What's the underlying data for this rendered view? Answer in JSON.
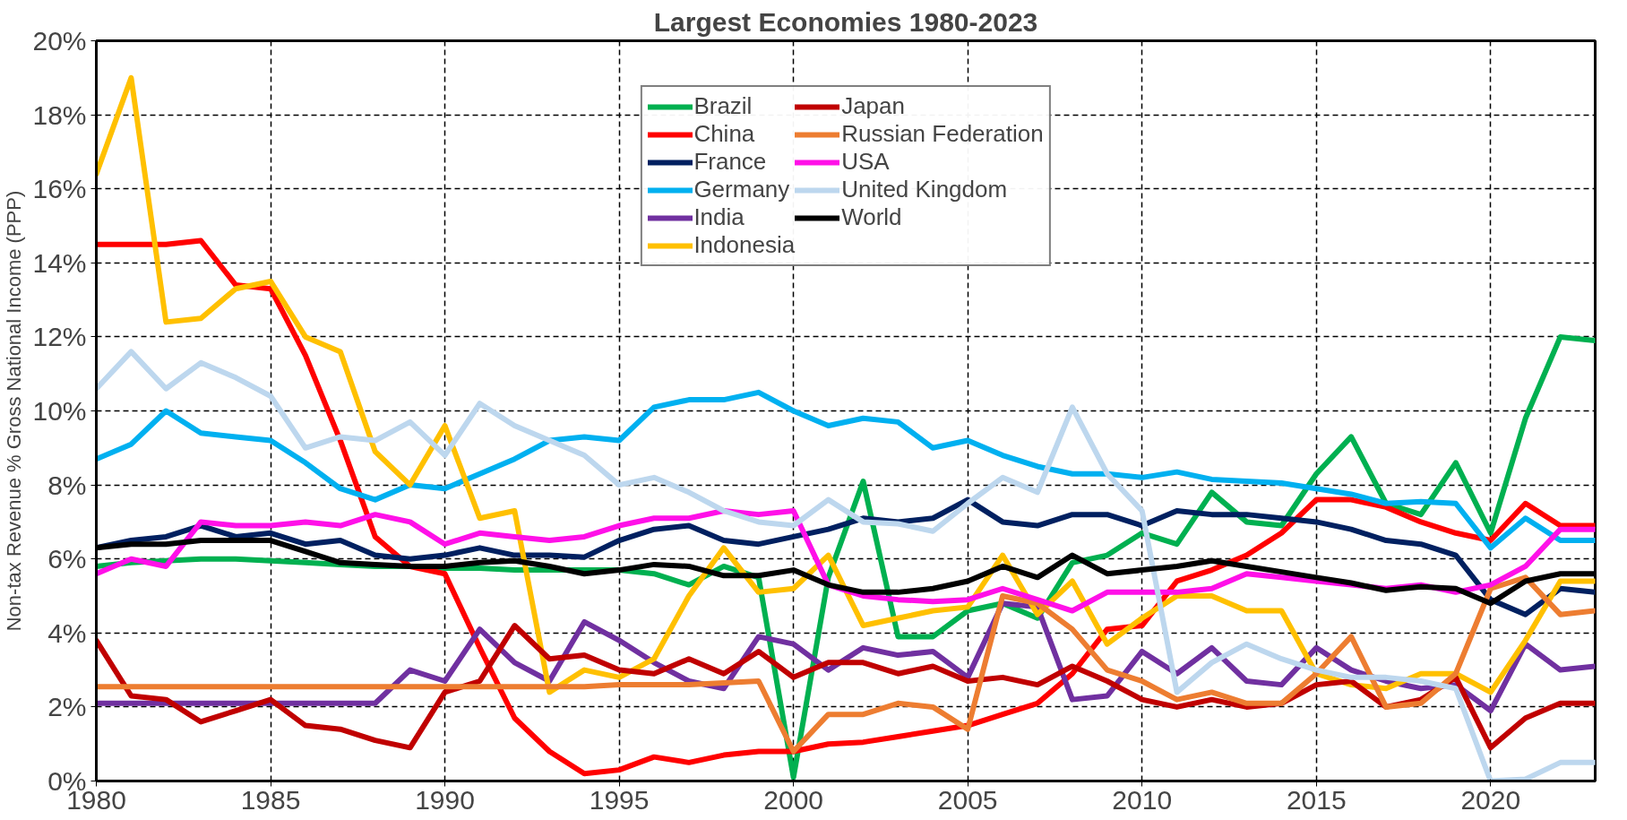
{
  "chart_data": {
    "type": "line",
    "title": "Largest Economies 1980-2023",
    "ylabel": "Non-tax Revenue % Gross National Income (PPP)",
    "x": [
      1980,
      1981,
      1982,
      1983,
      1984,
      1985,
      1986,
      1987,
      1988,
      1989,
      1990,
      1991,
      1992,
      1993,
      1994,
      1995,
      1996,
      1997,
      1998,
      1999,
      2000,
      2001,
      2002,
      2003,
      2004,
      2005,
      2006,
      2007,
      2008,
      2009,
      2010,
      2011,
      2012,
      2013,
      2014,
      2015,
      2016,
      2017,
      2018,
      2019,
      2020,
      2021,
      2022,
      2023
    ],
    "xlim": [
      1980,
      2023
    ],
    "xticks": [
      1980,
      1985,
      1990,
      1995,
      2000,
      2005,
      2010,
      2015,
      2020
    ],
    "ylim": [
      0,
      20
    ],
    "yticks": [
      {
        "value": 0,
        "label": "0%"
      },
      {
        "value": 2,
        "label": "2%"
      },
      {
        "value": 4,
        "label": "4%"
      },
      {
        "value": 6,
        "label": "6%"
      },
      {
        "value": 8,
        "label": "8%"
      },
      {
        "value": 10,
        "label": "10%"
      },
      {
        "value": 12,
        "label": "12%"
      },
      {
        "value": 14,
        "label": "14%"
      },
      {
        "value": 16,
        "label": "16%"
      },
      {
        "value": 18,
        "label": "18%"
      },
      {
        "value": 20,
        "label": "20%"
      }
    ],
    "grid": true,
    "legend": "top",
    "line_style": "solid",
    "marker": "none",
    "series": [
      {
        "name": "Brazil",
        "color": "#00b050",
        "values": [
          5.8,
          5.9,
          5.95,
          6.0,
          6.0,
          5.95,
          5.9,
          5.85,
          5.8,
          5.8,
          5.75,
          5.75,
          5.7,
          5.7,
          5.7,
          5.7,
          5.6,
          5.3,
          5.8,
          5.5,
          0.1,
          5.5,
          8.1,
          3.9,
          3.9,
          4.6,
          4.8,
          4.4,
          5.9,
          6.1,
          6.7,
          6.4,
          7.8,
          7.0,
          6.9,
          8.3,
          9.3,
          7.5,
          7.2,
          8.6,
          6.7,
          9.8,
          12.0,
          11.9
        ]
      },
      {
        "name": "China",
        "color": "#ff0000",
        "values": [
          14.5,
          14.5,
          14.5,
          14.6,
          13.4,
          13.3,
          11.5,
          9.2,
          6.6,
          5.8,
          5.6,
          3.6,
          1.7,
          0.8,
          0.2,
          0.3,
          0.65,
          0.5,
          0.7,
          0.8,
          0.8,
          1.0,
          1.05,
          1.2,
          1.35,
          1.5,
          1.8,
          2.1,
          2.9,
          4.1,
          4.2,
          5.4,
          5.7,
          6.1,
          6.7,
          7.6,
          7.6,
          7.4,
          7.0,
          6.7,
          6.5,
          7.5,
          6.9,
          6.9
        ]
      },
      {
        "name": "France",
        "color": "#002060",
        "values": [
          6.3,
          6.5,
          6.6,
          6.9,
          6.6,
          6.7,
          6.4,
          6.5,
          6.1,
          6.0,
          6.1,
          6.3,
          6.1,
          6.1,
          6.05,
          6.5,
          6.8,
          6.9,
          6.5,
          6.4,
          6.6,
          6.8,
          7.1,
          7.0,
          7.1,
          7.6,
          7.0,
          6.9,
          7.2,
          7.2,
          6.9,
          7.3,
          7.2,
          7.2,
          7.1,
          7.0,
          6.8,
          6.5,
          6.4,
          6.1,
          4.9,
          4.5,
          5.2,
          5.1
        ]
      },
      {
        "name": "Germany",
        "color": "#00b0f0",
        "values": [
          8.7,
          9.1,
          10.0,
          9.4,
          9.3,
          9.2,
          8.6,
          7.9,
          7.6,
          8.0,
          7.9,
          8.3,
          8.7,
          9.2,
          9.3,
          9.2,
          10.1,
          10.3,
          10.3,
          10.5,
          10.0,
          9.6,
          9.8,
          9.7,
          9.0,
          9.2,
          8.8,
          8.5,
          8.3,
          8.3,
          8.2,
          8.35,
          8.15,
          8.1,
          8.05,
          7.9,
          7.75,
          7.5,
          7.55,
          7.5,
          6.3,
          7.1,
          6.5,
          6.5
        ]
      },
      {
        "name": "India",
        "color": "#7030a0",
        "values": [
          2.1,
          2.1,
          2.1,
          2.1,
          2.1,
          2.1,
          2.1,
          2.1,
          2.1,
          3.0,
          2.7,
          4.1,
          3.2,
          2.7,
          4.3,
          3.8,
          3.2,
          2.7,
          2.5,
          3.9,
          3.7,
          3.0,
          3.6,
          3.4,
          3.5,
          2.8,
          4.8,
          4.7,
          2.2,
          2.3,
          3.5,
          2.9,
          3.6,
          2.7,
          2.6,
          3.6,
          3.0,
          2.7,
          2.5,
          2.6,
          1.9,
          3.7,
          3.0,
          3.1
        ]
      },
      {
        "name": "Indonesia",
        "color": "#ffc000",
        "values": [
          16.4,
          19.0,
          12.4,
          12.5,
          13.3,
          13.5,
          12.0,
          11.6,
          8.9,
          8.0,
          9.6,
          7.1,
          7.3,
          2.4,
          3.0,
          2.8,
          3.3,
          5.0,
          6.3,
          5.1,
          5.2,
          6.1,
          4.2,
          4.4,
          4.6,
          4.7,
          6.1,
          4.5,
          5.4,
          3.7,
          4.4,
          5.0,
          5.0,
          4.6,
          4.6,
          2.9,
          2.6,
          2.5,
          2.9,
          2.9,
          2.4,
          3.8,
          5.4,
          5.4
        ]
      },
      {
        "name": "Japan",
        "color": "#c00000",
        "values": [
          3.8,
          2.3,
          2.2,
          1.6,
          1.9,
          2.2,
          1.5,
          1.4,
          1.1,
          0.9,
          2.4,
          2.7,
          4.2,
          3.3,
          3.4,
          3.0,
          2.9,
          3.3,
          2.9,
          3.5,
          2.8,
          3.2,
          3.2,
          2.9,
          3.1,
          2.7,
          2.8,
          2.6,
          3.1,
          2.7,
          2.2,
          2.0,
          2.2,
          2.0,
          2.1,
          2.6,
          2.7,
          2.0,
          2.2,
          2.8,
          0.9,
          1.7,
          2.1,
          2.1
        ]
      },
      {
        "name": "Russian Federation",
        "color": "#ed7d31",
        "values": [
          2.55,
          2.55,
          2.55,
          2.55,
          2.55,
          2.55,
          2.55,
          2.55,
          2.55,
          2.55,
          2.55,
          2.55,
          2.55,
          2.55,
          2.55,
          2.6,
          2.6,
          2.6,
          2.65,
          2.7,
          0.8,
          1.8,
          1.8,
          2.1,
          2.0,
          1.4,
          5.0,
          4.8,
          4.1,
          3.0,
          2.7,
          2.2,
          2.4,
          2.1,
          2.1,
          2.9,
          3.9,
          2.0,
          2.1,
          2.9,
          5.2,
          5.5,
          4.5,
          4.6
        ]
      },
      {
        "name": "USA",
        "color": "#ff10e8",
        "values": [
          5.6,
          6.0,
          5.8,
          7.0,
          6.9,
          6.9,
          7.0,
          6.9,
          7.2,
          7.0,
          6.4,
          6.7,
          6.6,
          6.5,
          6.6,
          6.9,
          7.1,
          7.1,
          7.3,
          7.2,
          7.3,
          5.3,
          5.0,
          4.9,
          4.85,
          4.9,
          5.2,
          4.9,
          4.6,
          5.1,
          5.1,
          5.1,
          5.2,
          5.6,
          5.5,
          5.4,
          5.3,
          5.2,
          5.3,
          5.1,
          5.3,
          5.8,
          6.8,
          6.8
        ]
      },
      {
        "name": "United Kingdom",
        "color": "#bdd7ee",
        "values": [
          10.6,
          11.6,
          10.6,
          11.3,
          10.9,
          10.4,
          9.0,
          9.3,
          9.2,
          9.7,
          8.8,
          10.2,
          9.6,
          9.2,
          8.8,
          8.0,
          8.2,
          7.8,
          7.3,
          7.0,
          6.9,
          7.6,
          7.0,
          6.95,
          6.75,
          7.5,
          8.2,
          7.8,
          10.1,
          8.3,
          7.3,
          2.4,
          3.2,
          3.7,
          3.3,
          3.0,
          2.8,
          2.8,
          2.7,
          2.5,
          0.0,
          0.05,
          0.5,
          0.5
        ]
      },
      {
        "name": "World",
        "color": "#000000",
        "values": [
          6.3,
          6.4,
          6.4,
          6.5,
          6.5,
          6.5,
          6.2,
          5.9,
          5.85,
          5.8,
          5.8,
          5.9,
          5.95,
          5.8,
          5.6,
          5.7,
          5.85,
          5.8,
          5.55,
          5.55,
          5.7,
          5.3,
          5.1,
          5.1,
          5.2,
          5.4,
          5.8,
          5.5,
          6.1,
          5.6,
          5.7,
          5.8,
          5.95,
          5.8,
          5.65,
          5.5,
          5.35,
          5.15,
          5.25,
          5.2,
          4.8,
          5.4,
          5.6,
          5.6
        ]
      }
    ]
  }
}
